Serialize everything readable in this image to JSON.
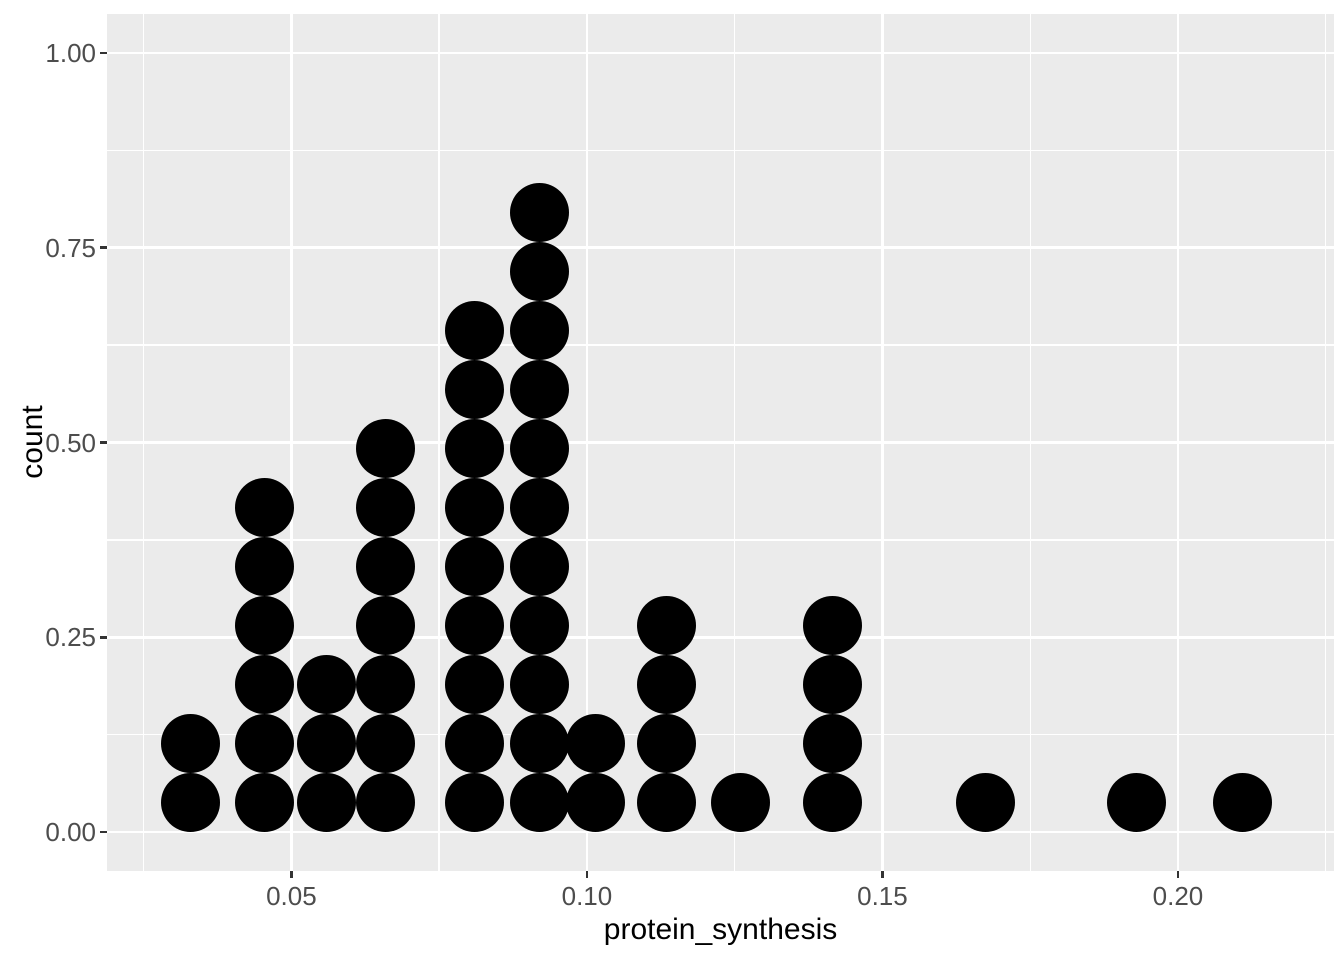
{
  "chart_data": {
    "type": "dotplot",
    "title": "",
    "xlabel": "protein_synthesis",
    "ylabel": "count",
    "xlim": [
      0.0188,
      0.2264
    ],
    "ylim": [
      -0.05,
      1.05
    ],
    "grid": true,
    "legend_position": "none",
    "x_ticks": {
      "values": [
        0.05,
        0.1,
        0.15,
        0.2
      ],
      "labels": [
        "0.05",
        "0.10",
        "0.15",
        "0.20"
      ]
    },
    "y_ticks": {
      "values": [
        0.0,
        0.25,
        0.5,
        0.75,
        1.0
      ],
      "labels": [
        "0.00",
        "0.25",
        "0.50",
        "0.75",
        "1.00"
      ]
    },
    "x_minor_ticks": [
      0.025,
      0.075,
      0.125,
      0.175,
      0.225
    ],
    "y_minor_ticks": [
      0.125,
      0.375,
      0.625,
      0.875
    ],
    "dot_stacks": [
      {
        "x": 0.033,
        "count": 2
      },
      {
        "x": 0.0455,
        "count": 6
      },
      {
        "x": 0.056,
        "count": 3
      },
      {
        "x": 0.066,
        "count": 7
      },
      {
        "x": 0.081,
        "count": 9
      },
      {
        "x": 0.092,
        "count": 11
      },
      {
        "x": 0.1015,
        "count": 2
      },
      {
        "x": 0.1135,
        "count": 4
      },
      {
        "x": 0.126,
        "count": 1
      },
      {
        "x": 0.1415,
        "count": 4
      },
      {
        "x": 0.1675,
        "count": 1
      },
      {
        "x": 0.193,
        "count": 1
      },
      {
        "x": 0.211,
        "count": 1
      }
    ],
    "dot_stack_spacing": 0.0757,
    "total_points": 52,
    "colors": {
      "dot": "#000000",
      "panel_background": "#EBEBEB",
      "gridline": "#FFFFFF",
      "tick_label": "#4D4D4D",
      "axis_title": "#000000",
      "tick_mark": "#333333",
      "figure_background": "#FFFFFF"
    }
  }
}
